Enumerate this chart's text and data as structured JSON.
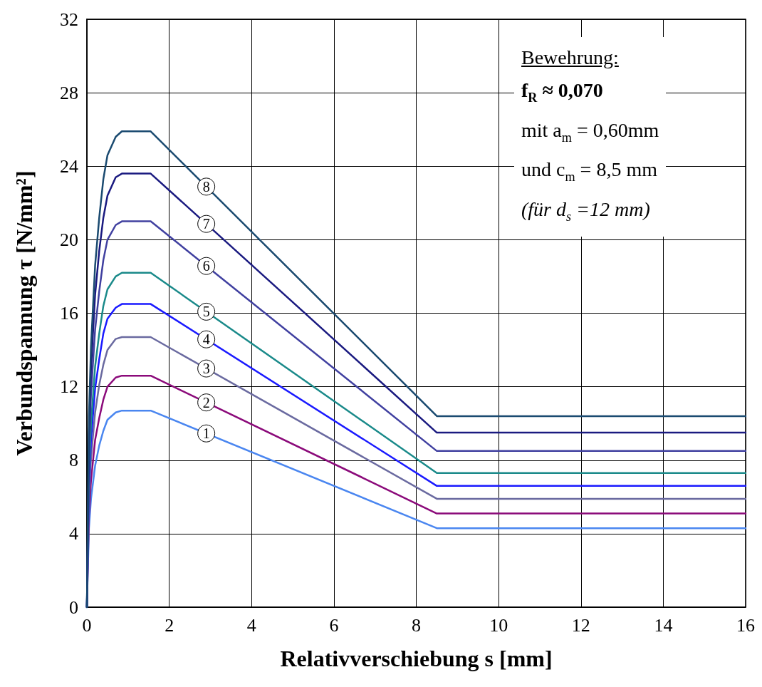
{
  "chart_data": {
    "type": "line",
    "xlabel": "Relativverschiebung s [mm]",
    "ylabel": "Verbundspannung τ [N/mm²]",
    "x": [
      0,
      0.05,
      0.1,
      0.2,
      0.3,
      0.4,
      0.5,
      0.7,
      0.85,
      1.55,
      8.5,
      16
    ],
    "series": [
      {
        "name": "1",
        "color": "#4a86f0",
        "values": [
          0,
          4.3,
          5.9,
          7.7,
          8.8,
          9.6,
          10.2,
          10.6,
          10.7,
          10.7,
          4.3,
          4.3
        ]
      },
      {
        "name": "2",
        "color": "#8b0a7a",
        "values": [
          0,
          5.0,
          6.9,
          9.1,
          10.3,
          11.3,
          12.0,
          12.5,
          12.6,
          12.6,
          5.1,
          5.1
        ]
      },
      {
        "name": "3",
        "color": "#6a6aa0",
        "values": [
          0,
          5.9,
          8.1,
          10.6,
          12.1,
          13.2,
          14.0,
          14.6,
          14.7,
          14.7,
          5.9,
          5.9
        ]
      },
      {
        "name": "4",
        "color": "#1a1aff",
        "values": [
          0,
          6.6,
          9.1,
          11.9,
          13.5,
          14.9,
          15.7,
          16.3,
          16.5,
          16.5,
          6.6,
          6.6
        ]
      },
      {
        "name": "5",
        "color": "#1a8a8a",
        "values": [
          0,
          7.3,
          10.0,
          13.1,
          14.9,
          16.4,
          17.3,
          18.0,
          18.2,
          18.2,
          7.3,
          7.3
        ]
      },
      {
        "name": "6",
        "color": "#4040a0",
        "values": [
          0,
          8.4,
          11.6,
          15.1,
          17.2,
          18.9,
          20.0,
          20.8,
          21.0,
          21.0,
          8.5,
          8.5
        ]
      },
      {
        "name": "7",
        "color": "#1a1a80",
        "values": [
          0,
          9.4,
          13.0,
          17.0,
          19.4,
          21.2,
          22.4,
          23.4,
          23.6,
          23.6,
          9.5,
          9.5
        ]
      },
      {
        "name": "8",
        "color": "#1a4a70",
        "values": [
          0,
          10.4,
          14.2,
          18.6,
          21.2,
          23.3,
          24.6,
          25.6,
          25.9,
          25.9,
          10.4,
          10.4
        ]
      }
    ],
    "xlim": [
      0,
      16
    ],
    "xticks": [
      0,
      2,
      4,
      6,
      8,
      10,
      12,
      14,
      16
    ],
    "ylim": [
      0,
      32
    ],
    "yticks": [
      0,
      4,
      8,
      12,
      16,
      20,
      24,
      28,
      32
    ],
    "annotations": [
      "Bewehrung:",
      "f$_{R}$ ≈ 0,070",
      "mit a$_{m}$ = 0,60mm",
      "und c$_{m}$ = 8,5 mm",
      "(für d$_{s}$ =12 mm)"
    ],
    "grid": true,
    "legend": false,
    "marker": "none",
    "line_style": "solid"
  }
}
